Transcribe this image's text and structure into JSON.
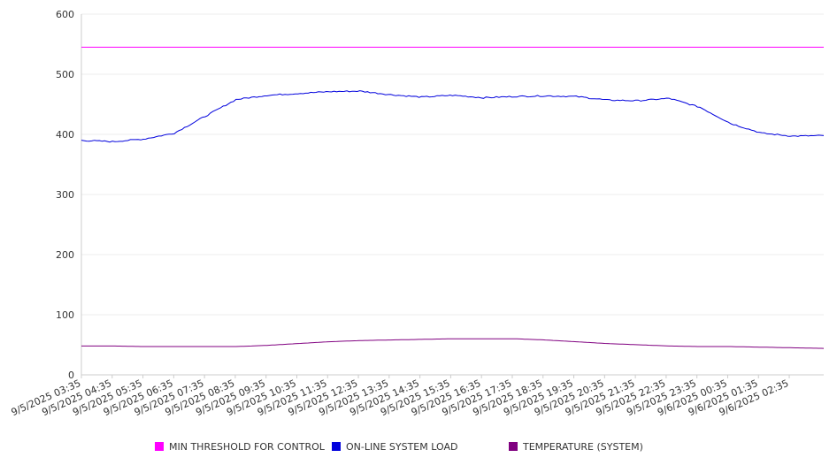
{
  "chart_data": {
    "type": "line",
    "ylim": [
      0,
      600
    ],
    "yticks": [
      0,
      100,
      200,
      300,
      400,
      500,
      600
    ],
    "xlabels": [
      "9/5/2025 03:35",
      "9/5/2025 04:35",
      "9/5/2025 05:35",
      "9/5/2025 06:35",
      "9/5/2025 07:35",
      "9/5/2025 08:35",
      "9/5/2025 09:35",
      "9/5/2025 10:35",
      "9/5/2025 11:35",
      "9/5/2025 12:35",
      "9/5/2025 13:35",
      "9/5/2025 14:35",
      "9/5/2025 15:35",
      "9/5/2025 16:35",
      "9/5/2025 17:35",
      "9/5/2025 18:35",
      "9/5/2025 19:35",
      "9/5/2025 20:35",
      "9/5/2025 21:35",
      "9/5/2025 22:35",
      "9/5/2025 23:35",
      "9/6/2025 00:35",
      "9/6/2025 01:35",
      "9/6/2025 02:35"
    ],
    "x_end": "9/6/2025 03:30",
    "grid": true,
    "legend_position": "bottom",
    "series": [
      {
        "name": "MIN THRESHOLD FOR CONTROL",
        "color": "#ff00ff",
        "values": [
          545,
          545,
          545,
          545,
          545,
          545,
          545,
          545,
          545,
          545,
          545,
          545,
          545,
          545,
          545,
          545,
          545,
          545,
          545,
          545,
          545,
          545,
          545,
          545,
          545
        ]
      },
      {
        "name": "ON-LINE SYSTEM LOAD",
        "color": "#0000dd",
        "values": [
          390,
          388,
          392,
          402,
          430,
          458,
          465,
          468,
          471,
          472,
          466,
          462,
          465,
          461,
          463,
          464,
          463,
          457,
          456,
          460,
          445,
          418,
          402,
          397,
          398
        ]
      },
      {
        "name": "TEMPERATURE (SYSTEM)",
        "color": "#800080",
        "values": [
          48,
          48,
          47,
          47,
          47,
          47,
          49,
          52,
          55,
          57,
          58,
          59,
          60,
          60,
          60,
          58,
          55,
          52,
          50,
          48,
          47,
          47,
          46,
          45,
          44
        ]
      }
    ]
  }
}
